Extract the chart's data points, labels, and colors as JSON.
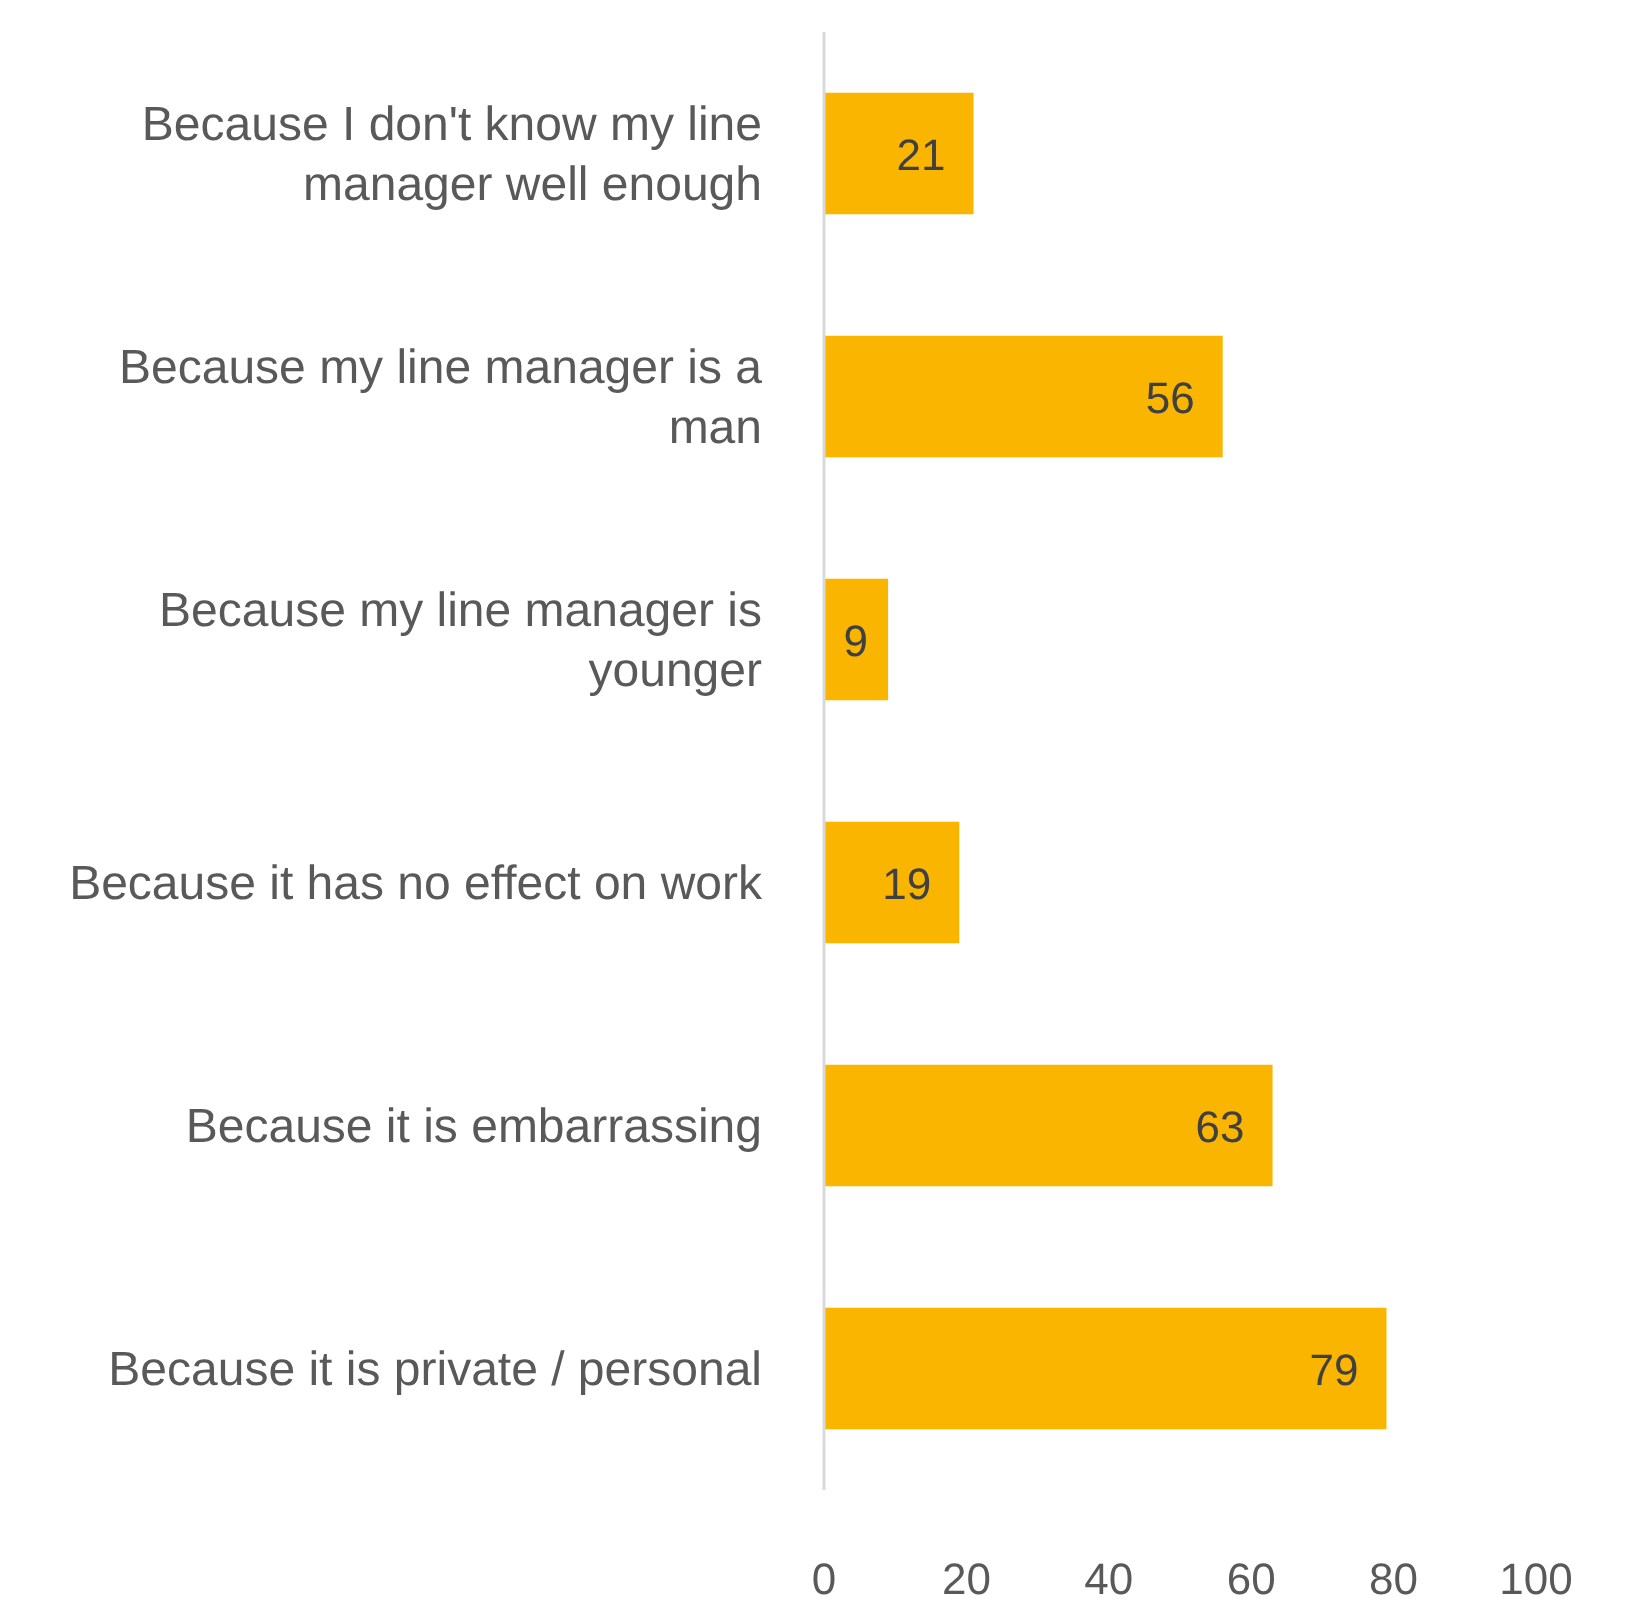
{
  "chart_data": {
    "type": "bar",
    "orientation": "horizontal",
    "categories": [
      "Because I don't know my line manager well enough",
      "Because my line manager is a man",
      "Because my line manager is younger",
      "Because it has no effect on work",
      "Because it is embarrassing",
      "Because it is private / personal"
    ],
    "values": [
      21,
      56,
      9,
      19,
      63,
      79
    ],
    "color": "#f9b500",
    "xlim": [
      0,
      100
    ],
    "xticks": [
      0,
      20,
      40,
      60,
      80,
      100
    ],
    "grid": false,
    "data_labels": true
  }
}
